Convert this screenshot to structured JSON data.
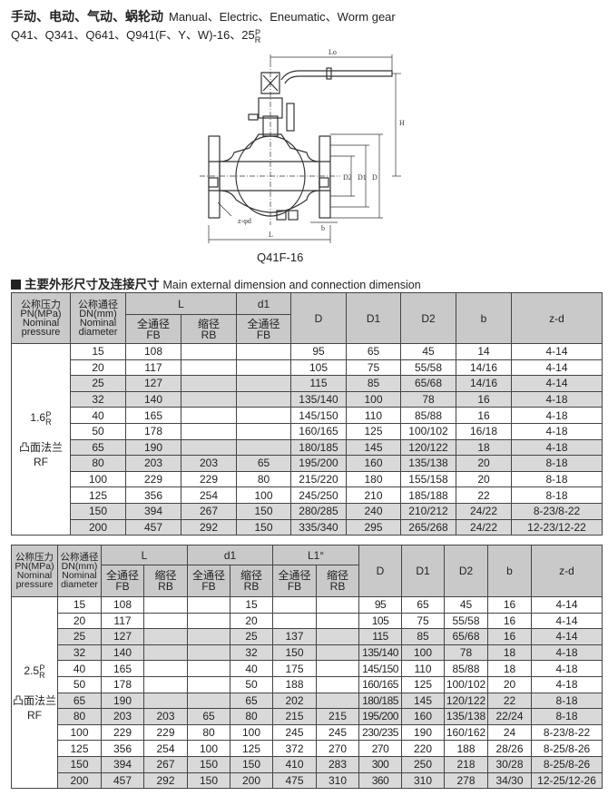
{
  "header": {
    "title_cn": "手动、电动、气动、蜗轮动",
    "title_en": "Manual、Electric、Eneumatic、Worm gear",
    "models": "Q41、Q341、Q641、Q941(F、Y、W)-16、25",
    "suffix_top": "P",
    "suffix_bottom": "R"
  },
  "drawing": {
    "caption": "Q41F-16",
    "labels": {
      "L": "L",
      "Lo": "Lo",
      "H": "H",
      "D": "D",
      "D1": "D1",
      "D2": "D2",
      "b": "b",
      "zd": "z-φd"
    }
  },
  "section": {
    "title_cn": "主要外形尺寸及连接尺寸",
    "title_en": "Main external dimension and connection dimension"
  },
  "table1": {
    "headers": {
      "pn_cn": "公称压力",
      "pn_unit": "PN(MPa)",
      "pn_en1": "Nominal",
      "pn_en2": "pressure",
      "dn_cn": "公称通径",
      "dn_unit": "DN(mm)",
      "dn_en1": "Nominal",
      "dn_en2": "diameter",
      "L": "L",
      "d1": "d1",
      "fb_cn": "全通径",
      "fb": "FB",
      "rb_cn": "缩径",
      "rb": "RB",
      "D": "D",
      "D1": "D1",
      "D2": "D2",
      "b": "b",
      "zd": "z-d"
    },
    "pressure": {
      "value": "1.6",
      "sup": "P",
      "sub": "R",
      "face_cn": "凸面法兰",
      "face": "RF"
    },
    "rows": [
      [
        "15",
        "108",
        "",
        "",
        "95",
        "65",
        "45",
        "14",
        "4-14"
      ],
      [
        "20",
        "117",
        "",
        "",
        "105",
        "75",
        "55/58",
        "14/16",
        "4-14"
      ],
      [
        "25",
        "127",
        "",
        "",
        "115",
        "85",
        "65/68",
        "14/16",
        "4-14"
      ],
      [
        "32",
        "140",
        "",
        "",
        "135/140",
        "100",
        "78",
        "16",
        "4-18"
      ],
      [
        "40",
        "165",
        "",
        "",
        "145/150",
        "110",
        "85/88",
        "16",
        "4-18"
      ],
      [
        "50",
        "178",
        "",
        "",
        "160/165",
        "125",
        "100/102",
        "16/18",
        "4-18"
      ],
      [
        "65",
        "190",
        "",
        "",
        "180/185",
        "145",
        "120/122",
        "18",
        "4-18"
      ],
      [
        "80",
        "203",
        "203",
        "65",
        "195/200",
        "160",
        "135/138",
        "20",
        "8-18"
      ],
      [
        "100",
        "229",
        "229",
        "80",
        "215/220",
        "180",
        "155/158",
        "20",
        "8-18"
      ],
      [
        "125",
        "356",
        "254",
        "100",
        "245/250",
        "210",
        "185/188",
        "22",
        "8-18"
      ],
      [
        "150",
        "394",
        "267",
        "150",
        "280/285",
        "240",
        "210/212",
        "24/22",
        "8-23/8-22"
      ],
      [
        "200",
        "457",
        "292",
        "150",
        "335/340",
        "295",
        "265/268",
        "24/22",
        "12-23/12-22"
      ]
    ]
  },
  "table2": {
    "headers": {
      "pn_cn": "公称压力",
      "pn_unit": "PN(MPa)",
      "pn_en1": "Nominal",
      "pn_en2": "pressure",
      "dn_cn": "公称通径",
      "dn_unit": "DN(mm)",
      "dn_en1": "Nominal",
      "dn_en2": "diameter",
      "L": "L",
      "d1": "d1",
      "L1": "L1°",
      "fb_cn": "全通径",
      "fb": "FB",
      "rb_cn": "缩径",
      "rb": "RB",
      "D": "D",
      "D1": "D1",
      "D2": "D2",
      "b": "b",
      "zd": "z-d"
    },
    "pressure": {
      "value": "2.5",
      "sup": "P",
      "sub": "R",
      "face_cn": "凸面法兰",
      "face": "RF"
    },
    "rows": [
      [
        "15",
        "108",
        "",
        "",
        "15",
        "",
        "",
        "95",
        "65",
        "45",
        "16",
        "4-14"
      ],
      [
        "20",
        "117",
        "",
        "",
        "20",
        "",
        "",
        "105",
        "75",
        "55/58",
        "16",
        "4-14"
      ],
      [
        "25",
        "127",
        "",
        "",
        "25",
        "137",
        "",
        "115",
        "85",
        "65/68",
        "16",
        "4-14"
      ],
      [
        "32",
        "140",
        "",
        "",
        "32",
        "150",
        "",
        "135/140",
        "100",
        "78",
        "18",
        "4-18"
      ],
      [
        "40",
        "165",
        "",
        "",
        "40",
        "175",
        "",
        "145/150",
        "110",
        "85/88",
        "18",
        "4-18"
      ],
      [
        "50",
        "178",
        "",
        "",
        "50",
        "188",
        "",
        "160/165",
        "125",
        "100/102",
        "20",
        "4-18"
      ],
      [
        "65",
        "190",
        "",
        "",
        "65",
        "202",
        "",
        "180/185",
        "145",
        "120/122",
        "22",
        "8-18"
      ],
      [
        "80",
        "203",
        "203",
        "65",
        "80",
        "215",
        "215",
        "195/200",
        "160",
        "135/138",
        "22/24",
        "8-18"
      ],
      [
        "100",
        "229",
        "229",
        "80",
        "100",
        "245",
        "245",
        "230/235",
        "190",
        "160/162",
        "24",
        "8-23/8-22"
      ],
      [
        "125",
        "356",
        "254",
        "100",
        "125",
        "372",
        "270",
        "270",
        "220",
        "188",
        "28/26",
        "8-25/8-26"
      ],
      [
        "150",
        "394",
        "267",
        "150",
        "150",
        "410",
        "283",
        "300",
        "250",
        "218",
        "30/28",
        "8-25/8-26"
      ],
      [
        "200",
        "457",
        "292",
        "150",
        "200",
        "475",
        "310",
        "360",
        "310",
        "278",
        "34/30",
        "12-25/12-26"
      ]
    ]
  },
  "row_shading": {
    "gray": "#d9d9d9",
    "header": "#c9c9c9"
  }
}
